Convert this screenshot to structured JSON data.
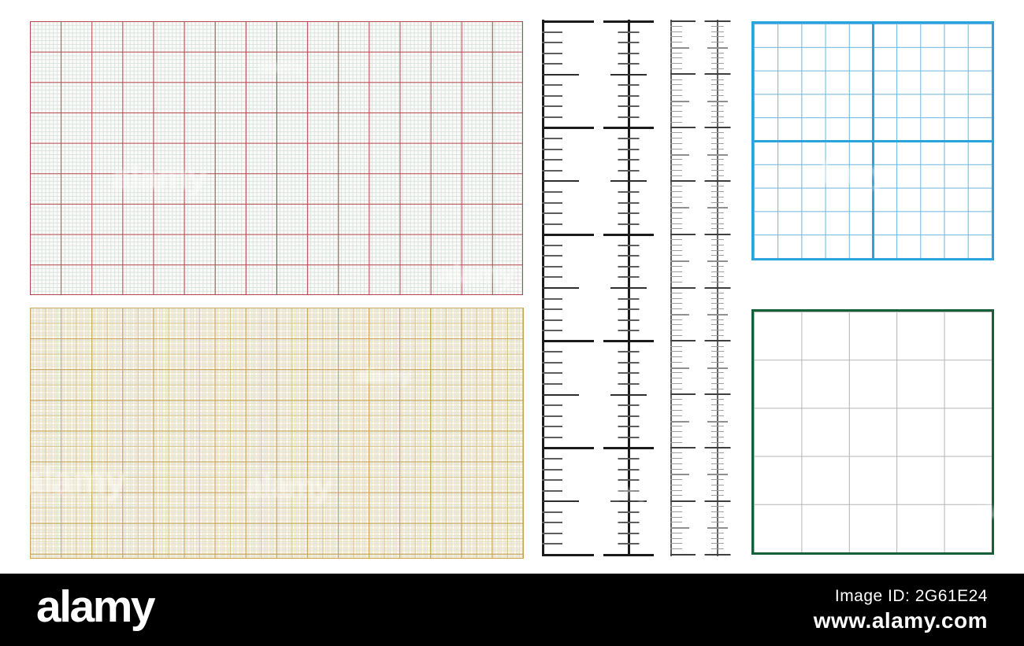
{
  "colors": {
    "pink_major": "#b5474c",
    "pink_minor": "#d9e3de",
    "pink_bg": "#fcfbf9",
    "yellow_major": "#c7a352",
    "yellow_medium": "#d9c386",
    "yellow_minor": "#eadfbd",
    "yellow_bg": "#fdfcf6",
    "blue_thick": "#2ba3de",
    "blue_thin": "#69b5de",
    "green_border": "#156038",
    "green_line": "#b4b4b4",
    "ruler_dark": "#1a1a1a",
    "ruler_mid": "#5e5e5e",
    "ruler_light": "#8f8f8f",
    "footer_bg": "#000000",
    "footer_text": "#ffffff"
  },
  "panels": {
    "pink_graph_paper": {
      "major_columns": 16,
      "major_rows": 9,
      "minor_per_major": 8
    },
    "yellow_mm_paper": {
      "major_columns": 16,
      "major_rows": 8,
      "minor_per_major": 10,
      "medium_every": 5
    },
    "blue_quadrant_grid": {
      "columns": 10,
      "rows": 10,
      "thick_divider_every": 5
    },
    "green_bordered_grid": {
      "columns": 5,
      "rows": 5
    }
  },
  "rulers": {
    "pair_large": {
      "major_intervals": 5,
      "subdivisions_per_interval": 10
    },
    "pair_fine": {
      "major_intervals": 10,
      "subdivisions_per_interval": 10
    }
  },
  "watermark": {
    "text": "alamy"
  },
  "footer": {
    "logo_text": "alamy",
    "image_id_label": "Image ID:",
    "image_id_value": "2G61E24",
    "website": "www.alamy.com"
  }
}
